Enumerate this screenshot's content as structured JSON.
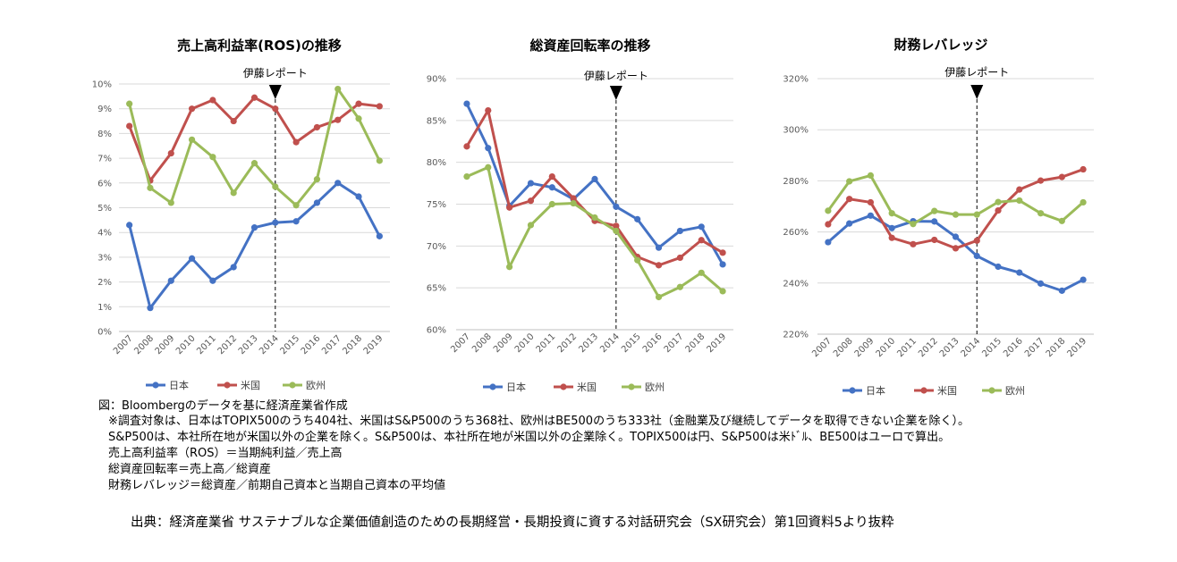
{
  "chart_data": [
    {
      "type": "line",
      "title": "売上高利益率(ROS)の推移",
      "categories": [
        "2007",
        "2008",
        "2009",
        "2010",
        "2011",
        "2012",
        "2013",
        "2014",
        "2015",
        "2016",
        "2017",
        "2018",
        "2019"
      ],
      "series": [
        {
          "name": "日本",
          "color": "#4472c4",
          "values": [
            4.3,
            0.95,
            2.05,
            2.95,
            2.05,
            2.6,
            4.2,
            4.4,
            4.45,
            5.2,
            6.0,
            5.45,
            3.85
          ]
        },
        {
          "name": "米国",
          "color": "#c0504d",
          "values": [
            8.3,
            6.1,
            7.2,
            9.0,
            9.35,
            8.5,
            9.45,
            9.0,
            7.65,
            8.25,
            8.55,
            9.2,
            9.1
          ]
        },
        {
          "name": "欧州",
          "color": "#9bbb59",
          "values": [
            9.2,
            5.8,
            5.2,
            7.75,
            7.05,
            5.6,
            6.8,
            5.85,
            5.1,
            6.15,
            9.8,
            8.6,
            6.9
          ]
        }
      ],
      "ylim": [
        0,
        10
      ],
      "yticks": [
        "0%",
        "1%",
        "2%",
        "3%",
        "4%",
        "5%",
        "6%",
        "7%",
        "8%",
        "9%",
        "10%"
      ],
      "annotation": {
        "label": "伊藤レポート",
        "category": "2014"
      },
      "legend": "bottom"
    },
    {
      "type": "line",
      "title": "総資産回転率の推移",
      "categories": [
        "2007",
        "2008",
        "2009",
        "2010",
        "2011",
        "2012",
        "2013",
        "2014",
        "2015",
        "2016",
        "2017",
        "2018",
        "2019"
      ],
      "series": [
        {
          "name": "日本",
          "color": "#4472c4",
          "values": [
            87.0,
            81.7,
            74.8,
            77.5,
            77.0,
            75.6,
            78.0,
            74.7,
            73.2,
            69.8,
            71.8,
            72.3,
            67.8
          ]
        },
        {
          "name": "米国",
          "color": "#c0504d",
          "values": [
            81.9,
            86.2,
            74.6,
            75.4,
            78.3,
            75.7,
            73.0,
            72.4,
            68.7,
            67.7,
            68.6,
            70.7,
            69.2
          ]
        },
        {
          "name": "欧州",
          "color": "#9bbb59",
          "values": [
            78.3,
            79.4,
            67.5,
            72.5,
            75.0,
            75.1,
            73.4,
            71.8,
            68.3,
            63.9,
            65.1,
            66.8,
            64.6
          ]
        }
      ],
      "ylim": [
        60,
        90
      ],
      "yticks": [
        "60%",
        "65%",
        "70%",
        "75%",
        "80%",
        "85%",
        "90%"
      ],
      "annotation": {
        "label": "伊藤レポート",
        "category": "2014"
      },
      "legend": "bottom"
    },
    {
      "type": "line",
      "title": "財務レバレッジ",
      "categories": [
        "2007",
        "2008",
        "2009",
        "2010",
        "2011",
        "2012",
        "2013",
        "2014",
        "2015",
        "2016",
        "2017",
        "2018",
        "2019"
      ],
      "series": [
        {
          "name": "日本",
          "color": "#4472c4",
          "values": [
            256.0,
            263.3,
            266.4,
            261.5,
            264.2,
            264.1,
            258.1,
            250.6,
            246.4,
            244.1,
            239.8,
            237.0,
            241.3
          ]
        },
        {
          "name": "米国",
          "color": "#c0504d",
          "values": [
            263.0,
            272.9,
            271.6,
            257.7,
            255.2,
            256.9,
            253.6,
            256.6,
            268.4,
            276.6,
            280.1,
            281.5,
            284.5
          ]
        },
        {
          "name": "欧州",
          "color": "#9bbb59",
          "values": [
            268.3,
            279.8,
            282.1,
            267.3,
            263.1,
            268.2,
            266.8,
            266.8,
            271.7,
            272.3,
            267.3,
            264.3,
            271.6
          ]
        }
      ],
      "ylim": [
        220,
        320
      ],
      "yticks": [
        "220%",
        "240%",
        "260%",
        "280%",
        "300%",
        "320%"
      ],
      "annotation": {
        "label": "伊藤レポート",
        "category": "2014"
      },
      "legend": "bottom"
    }
  ],
  "notes": [
    "図：Bloombergのデータを基に経済産業省作成",
    "※調査対象は、日本はTOPIX500のうち404社、米国はS&P500のうち368社、欧州はBE500のうち333社（金融業及び継続してデータを取得できない企業を除く）。",
    "S&P500は、本社所在地が米国以外の企業を除く。S&P500は、本社所在地が米国以外の企業除く。TOPIX500は円、S&P500は米ﾄﾞﾙ、BE500はユーロで算出。",
    "売上高利益率（ROS）＝当期純利益／売上高",
    "総資産回転率＝売上高／総資産",
    "財務レバレッジ＝総資産／前期自己資本と当期自己資本の平均値"
  ],
  "source": "出典：経済産業省 サステナブルな企業価値創造のための長期経営・長期投資に資する対話研究会（SX研究会）第1回資料5より抜粋"
}
